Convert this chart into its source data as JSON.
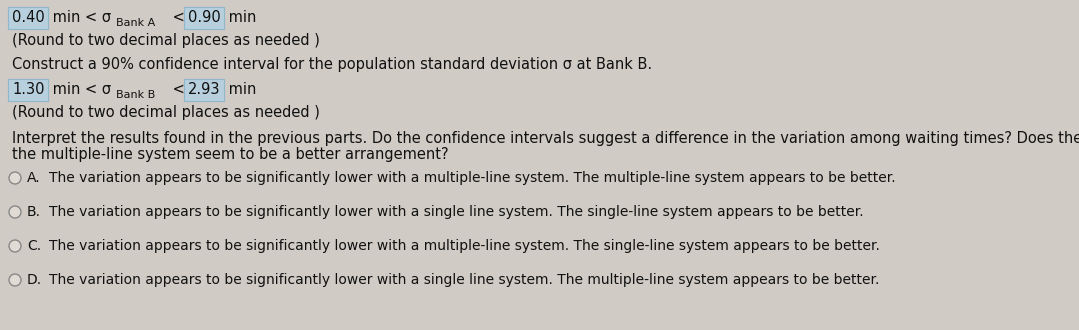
{
  "bg_color": "#d0cbc4",
  "box_color": "#b8d0de",
  "box_edge_color": "#90b8cc",
  "line1_box1": "0.40",
  "line1_box2": "0.90",
  "line4_box1": "1.30",
  "line4_box2": "2.93",
  "line2": "(Round to two decimal places as needed )",
  "line3": "Construct a 90% confidence interval for the population standard deviation σ at Bank B.",
  "line5": "(Round to two decimal places as needed )",
  "line6a": "Interpret the results found in the previous parts. Do the confidence intervals suggest a difference in the variation among waiting times? Does the single-line system or",
  "line6b": "the multiple-line system seem to be a better arrangement?",
  "optA": "The variation appears to be significantly lower with a multiple-line system. The multiple-line system appears to be better.",
  "optB": "The variation appears to be significantly lower with a single line system. The single-line system appears to be better.",
  "optC": "The variation appears to be significantly lower with a multiple-line system. The single-line system appears to be better.",
  "optD": "The variation appears to be significantly lower with a single line system. The multiple-line system appears to be better.",
  "opt_labels": [
    "A.",
    "B.",
    "C.",
    "D."
  ],
  "fs": 10.5,
  "fs_sub": 8.0,
  "fs_opt": 10.0,
  "text_color": "#111111"
}
